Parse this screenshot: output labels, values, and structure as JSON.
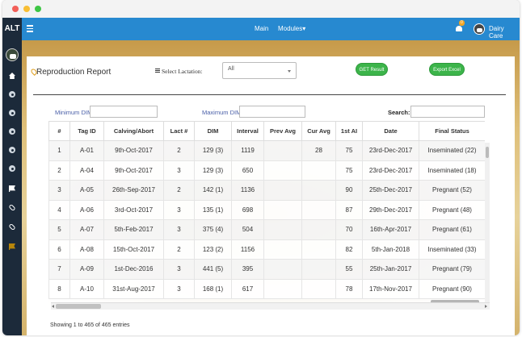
{
  "topbar": {
    "brand": "ALT",
    "nav": [
      {
        "label": "Main"
      },
      {
        "label": "Modules▾"
      }
    ],
    "notification_count": "0",
    "user_name": "Dairy Care"
  },
  "report": {
    "title": "Reproduction Report",
    "lactation_label": "Select Lactation:",
    "lactation_value": "All",
    "get_result_label": "GET Result",
    "export_label": "Export Excel"
  },
  "filters": {
    "min_dim_label": "Minimum DIM:",
    "max_dim_label": "Maximum DIM:",
    "search_label": "Search:"
  },
  "table": {
    "columns": [
      "#",
      "Tag ID",
      "Calving/Abort",
      "Lact #",
      "DIM",
      "Interval",
      "Prev Avg",
      "Cur Avg",
      "1st AI",
      "Date",
      "Final Status"
    ],
    "rows": [
      [
        "1",
        "A-01",
        "9th-Oct-2017",
        "2",
        "129 (3)",
        "1119",
        "",
        "28",
        "75",
        "23rd-Dec-2017",
        "Inseminated (22)"
      ],
      [
        "2",
        "A-04",
        "9th-Oct-2017",
        "3",
        "129 (3)",
        "650",
        "",
        "",
        "75",
        "23rd-Dec-2017",
        "Inseminated (18)"
      ],
      [
        "3",
        "A-05",
        "26th-Sep-2017",
        "2",
        "142 (1)",
        "1136",
        "",
        "",
        "90",
        "25th-Dec-2017",
        "Pregnant (52)"
      ],
      [
        "4",
        "A-06",
        "3rd-Oct-2017",
        "3",
        "135 (1)",
        "698",
        "",
        "",
        "87",
        "29th-Dec-2017",
        "Pregnant (48)"
      ],
      [
        "5",
        "A-07",
        "5th-Feb-2017",
        "3",
        "375 (4)",
        "504",
        "",
        "",
        "70",
        "16th-Apr-2017",
        "Pregnant (61)"
      ],
      [
        "6",
        "A-08",
        "15th-Oct-2017",
        "2",
        "123 (2)",
        "1156",
        "",
        "",
        "82",
        "5th-Jan-2018",
        "Inseminated (33)"
      ],
      [
        "7",
        "A-09",
        "1st-Dec-2016",
        "3",
        "441 (5)",
        "395",
        "",
        "",
        "55",
        "25th-Jan-2017",
        "Pregnant (79)"
      ],
      [
        "8",
        "A-10",
        "31st-Aug-2017",
        "3",
        "168 (1)",
        "617",
        "",
        "",
        "78",
        "17th-Nov-2017",
        "Pregnant (90)"
      ]
    ]
  },
  "footer": {
    "entries_text": "Showing 1 to 465 of 465 entries"
  },
  "colors": {
    "nav_blue": "#2789d0",
    "sidebar": "#1c2a3a",
    "button_green": "#3cb44a"
  }
}
